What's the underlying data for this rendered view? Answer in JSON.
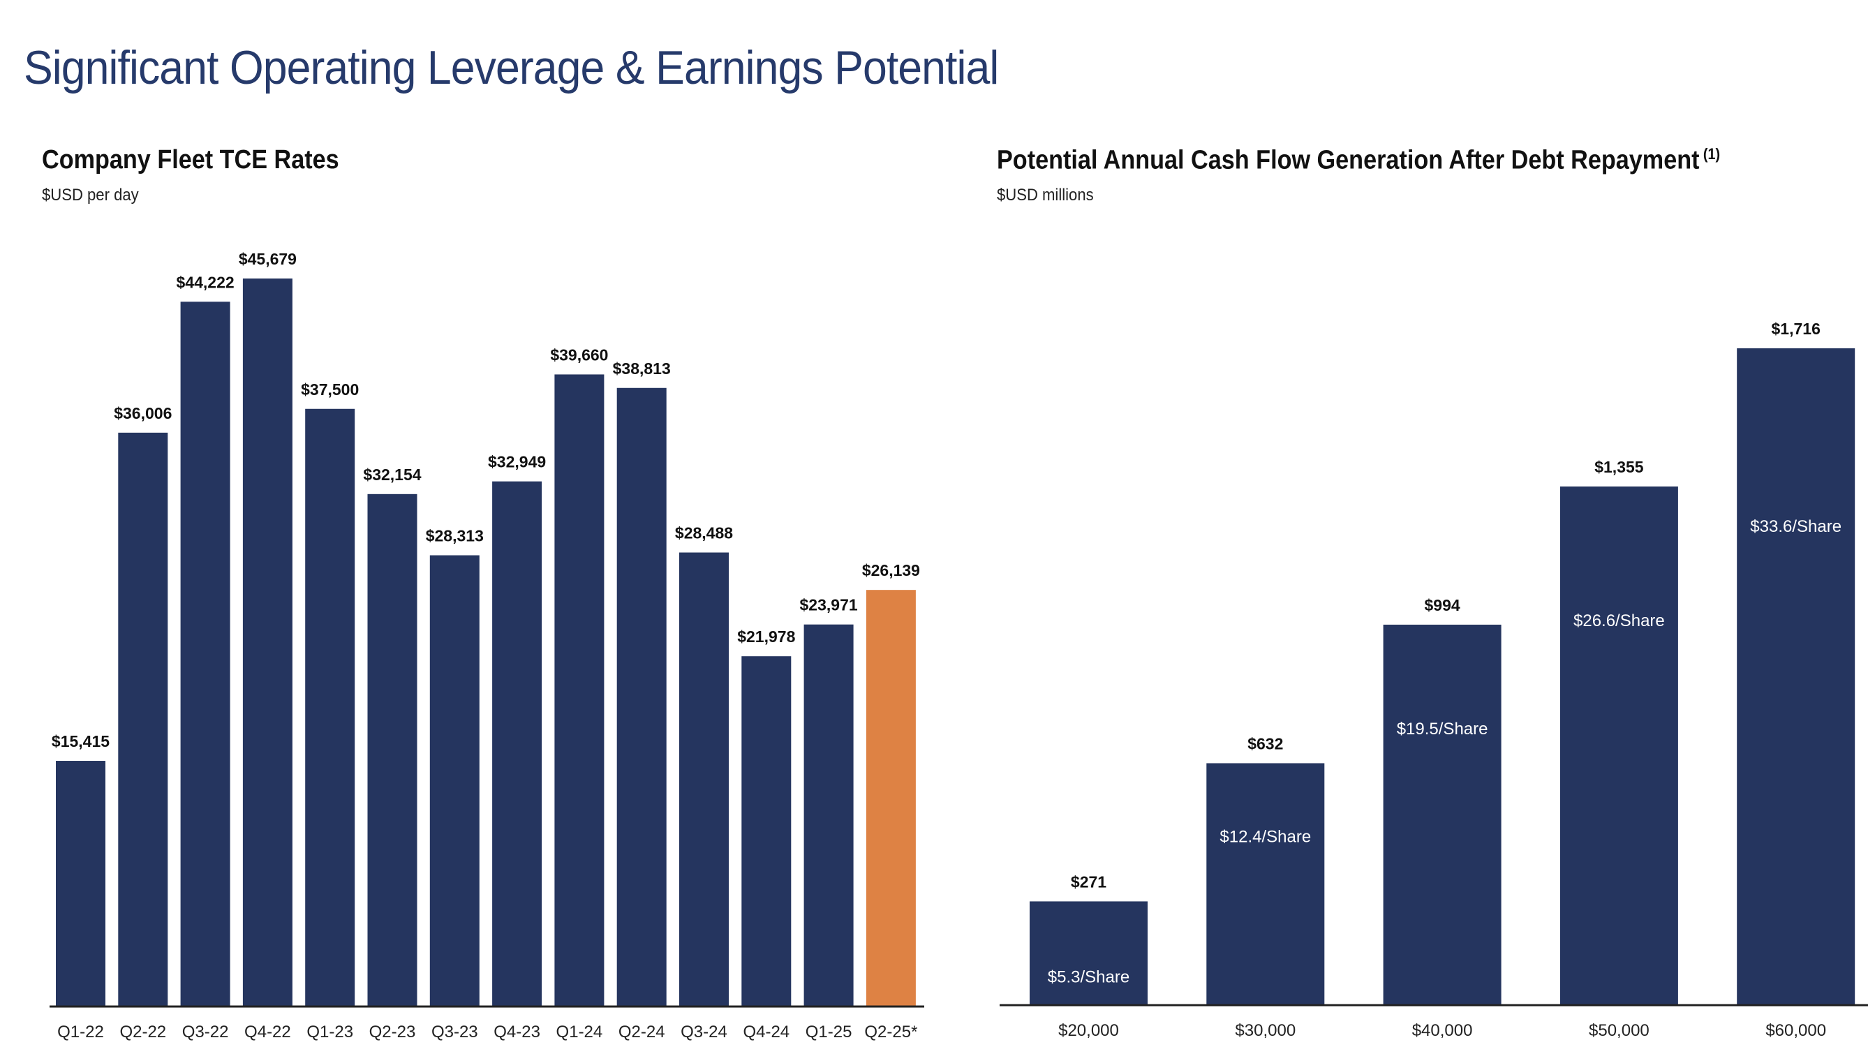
{
  "page": {
    "title": "Significant Operating Leverage & Earnings Potential"
  },
  "colors": {
    "title": "#263A6B",
    "bar_navy": "#25355F",
    "bar_highlight": "#DE8244",
    "axis": "#222222"
  },
  "chart_data": [
    {
      "type": "bar",
      "title": "Company Fleet TCE Rates",
      "subtitle": "$USD per day",
      "xlabel": "",
      "ylabel": "$USD per day",
      "grid": false,
      "categories": [
        "Q1-22",
        "Q2-22",
        "Q3-22",
        "Q4-22",
        "Q1-23",
        "Q2-23",
        "Q3-23",
        "Q4-23",
        "Q1-24",
        "Q2-24",
        "Q3-24",
        "Q4-24",
        "Q1-25",
        "Q2-25*"
      ],
      "values": [
        15415,
        36006,
        44222,
        45679,
        37500,
        32154,
        28313,
        32949,
        39660,
        38813,
        28488,
        21978,
        23971,
        26139
      ],
      "data_labels": [
        "$15,415",
        "$36,006",
        "$44,222",
        "$45,679",
        "$37,500",
        "$32,154",
        "$28,313",
        "$32,949",
        "$39,660",
        "$38,813",
        "$28,488",
        "$21,978",
        "$23,971",
        "$26,139"
      ],
      "highlight_index": 13,
      "ylim": [
        0,
        45679
      ]
    },
    {
      "type": "bar",
      "title": "Potential Annual Cash Flow Generation After Debt Repayment",
      "title_footnote": "(1)",
      "subtitle": "$USD millions",
      "xlabel": "",
      "ylabel": "$USD millions",
      "grid": false,
      "categories": [
        "$20,000",
        "$30,000",
        "$40,000",
        "$50,000",
        "$60,000"
      ],
      "values": [
        271,
        632,
        994,
        1355,
        1716
      ],
      "data_labels": [
        "$271",
        "$632",
        "$994",
        "$1,355",
        "$1,716"
      ],
      "per_share_labels": [
        "$5.3/Share",
        "$12.4/Share",
        "$19.5/Share",
        "$26.6/Share",
        "$33.6/Share"
      ],
      "per_share_values": [
        5.3,
        12.4,
        19.5,
        26.6,
        33.6
      ],
      "ylim": [
        0,
        1716
      ]
    }
  ]
}
